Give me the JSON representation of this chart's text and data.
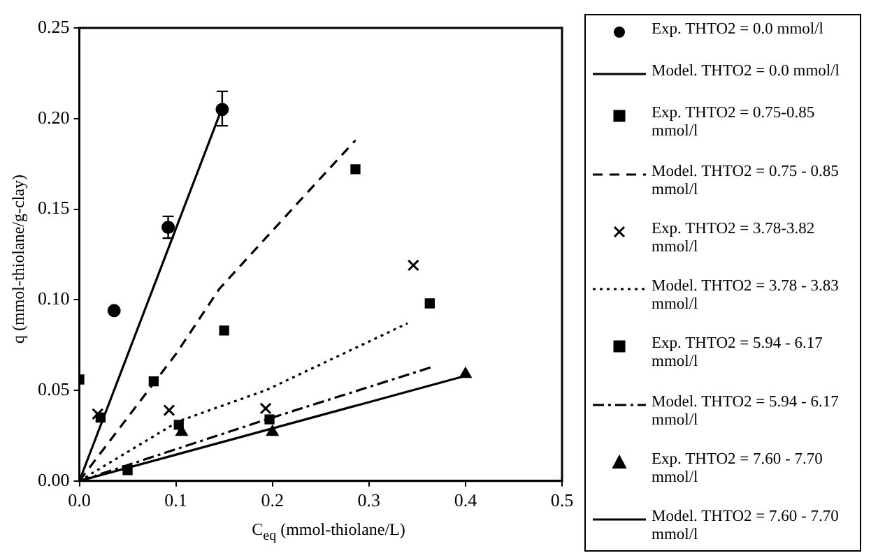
{
  "chart_data": {
    "type": "scatter",
    "xlabel": "C$_{eq}$ (mmol-thiolane/L)",
    "ylabel": "q (mmol-thiolane/g-clay)",
    "xlim": [
      0,
      0.5
    ],
    "xticks": [
      {
        "value": 0,
        "label": "0.0"
      },
      0.1,
      0.2,
      0.3,
      0.4,
      0.5
    ],
    "ylim": [
      0,
      0.25
    ],
    "yticks": [
      {
        "value": 0,
        "label": "0.00"
      },
      0.05,
      {
        "value": 0.1,
        "label": "0.10"
      },
      0.15,
      {
        "value": 0.2,
        "label": "0.20"
      },
      0.25
    ],
    "grid": false,
    "legend": "right",
    "series": [
      {
        "name": "Exp.  THTO2 = 0.0 mmol/l",
        "type": "scatter",
        "marker": "circle",
        "color": "#000000",
        "x": [
          0.036,
          0.092,
          0.148
        ],
        "values": [
          0.094,
          0.14,
          0.205
        ],
        "errors": [
          null,
          0.006,
          [
            0.196,
            0.215
          ]
        ]
      },
      {
        "name": "Model.  THTO2 = 0.0 mmol/l",
        "type": "line",
        "line_style": "solid",
        "color": "#000000",
        "x": [
          0,
          0.148
        ],
        "values": [
          0,
          0.206
        ]
      },
      {
        "name": "Exp. THTO2 = 0.75-0.85 mmol/l",
        "type": "scatter",
        "marker": "square",
        "color": "#000000",
        "x": [
          0,
          0.077,
          0.15,
          0.286
        ],
        "values": [
          0.056,
          0.055,
          0.083,
          0.172
        ]
      },
      {
        "name": "Model. THTO2 = 0.75 - 0.85 mmol/l",
        "type": "line",
        "line_style": "dashed",
        "color": "#000000",
        "x": [
          0,
          0.05,
          0.1,
          0.145,
          0.229,
          0.286
        ],
        "values": [
          0,
          0.035,
          0.07,
          0.106,
          0.155,
          0.188
        ]
      },
      {
        "name": "Exp. THTO2 = 3.78-3.82 mmol/l",
        "type": "scatter",
        "marker": "cross",
        "color": "#000000",
        "x": [
          0.019,
          0.093,
          0.193,
          0.346
        ],
        "values": [
          0.037,
          0.039,
          0.04,
          0.119
        ]
      },
      {
        "name": "Model. THTO2 = 3.78 - 3.83 mmol/l",
        "type": "line",
        "line_style": "dotted",
        "color": "#000000",
        "x": [
          0,
          0.103,
          0.193,
          0.34
        ],
        "values": [
          0,
          0.033,
          0.05,
          0.087
        ]
      },
      {
        "name": "Exp. THTO2 = 5.94 - 6.17 mmol/l",
        "type": "scatter",
        "marker": "square",
        "color": "#000000",
        "x": [
          0.022,
          0.05,
          0.103,
          0.197,
          0.363
        ],
        "values": [
          0.035,
          0.006,
          0.031,
          0.034,
          0.098
        ]
      },
      {
        "name": "Model. THTO2 = 5.94 - 6.17 mmol/l",
        "type": "line",
        "line_style": "dashdot",
        "color": "#000000",
        "x": [
          0,
          0.2,
          0.366
        ],
        "values": [
          0,
          0.035,
          0.063
        ]
      },
      {
        "name": "Exp. THTO2 = 7.60 - 7.70 mmol/l",
        "type": "scatter",
        "marker": "triangle",
        "color": "#000000",
        "x": [
          0.106,
          0.2,
          0.4
        ],
        "values": [
          0.027,
          0.027,
          0.059
        ]
      },
      {
        "name": "Model. THTO2 = 7.60 - 7.70 mmol/l",
        "type": "line",
        "line_style": "solid",
        "color": "#000000",
        "x": [
          0,
          0.4
        ],
        "values": [
          0,
          0.058
        ]
      }
    ]
  }
}
